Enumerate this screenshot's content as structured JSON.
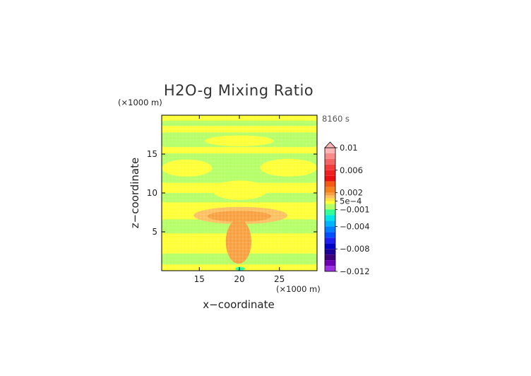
{
  "chart_data": {
    "type": "heatmap",
    "title": "H2O-g Mixing Ratio",
    "time_label": "8160 s",
    "xlabel": "x−coordinate",
    "ylabel": "z−coordinate",
    "x_unit": "(×1000 m)",
    "y_unit": "(×1000 m)",
    "xlim": [
      10.3,
      29.7
    ],
    "ylim": [
      0,
      20
    ],
    "x_ticks": [
      {
        "value": 15,
        "label": "15"
      },
      {
        "value": 20,
        "label": "20"
      },
      {
        "value": 25,
        "label": "25"
      }
    ],
    "y_ticks": [
      {
        "value": 5,
        "label": "5"
      },
      {
        "value": 10,
        "label": "10"
      },
      {
        "value": 15,
        "label": "15"
      }
    ],
    "colorbar": {
      "min": -0.012,
      "max": 0.01,
      "extend": "max",
      "ticks": [
        {
          "value": 0.01,
          "label": "0.01"
        },
        {
          "value": 0.006,
          "label": "0.006"
        },
        {
          "value": 0.002,
          "label": "0.002"
        },
        {
          "value": 0.0005,
          "label": "5e−4"
        },
        {
          "value": -0.001,
          "label": "−0.001"
        },
        {
          "value": -0.004,
          "label": "−0.004"
        },
        {
          "value": -0.008,
          "label": "−0.008"
        },
        {
          "value": -0.012,
          "label": "−0.012"
        }
      ],
      "levels": [
        {
          "from": 0.009,
          "to": 0.01,
          "color": "#fcb4b4"
        },
        {
          "from": 0.008,
          "to": 0.009,
          "color": "#f88a8a"
        },
        {
          "from": 0.007,
          "to": 0.008,
          "color": "#f46464"
        },
        {
          "from": 0.006,
          "to": 0.007,
          "color": "#f03c3c"
        },
        {
          "from": 0.005,
          "to": 0.006,
          "color": "#ee2020"
        },
        {
          "from": 0.004,
          "to": 0.005,
          "color": "#e81010"
        },
        {
          "from": 0.003,
          "to": 0.004,
          "color": "#f45a14"
        },
        {
          "from": 0.002,
          "to": 0.003,
          "color": "#f4801e"
        },
        {
          "from": 0.0015,
          "to": 0.002,
          "color": "#f8a040"
        },
        {
          "from": 0.001,
          "to": 0.0015,
          "color": "#fcc060"
        },
        {
          "from": 0.0005,
          "to": 0.001,
          "color": "#fce040"
        },
        {
          "from": 0.0,
          "to": 0.0005,
          "color": "#ffff33"
        },
        {
          "from": -0.001,
          "to": 0.0,
          "color": "#b4ff66"
        },
        {
          "from": -0.002,
          "to": -0.001,
          "color": "#33ff99"
        },
        {
          "from": -0.003,
          "to": -0.002,
          "color": "#00e6e6"
        },
        {
          "from": -0.004,
          "to": -0.003,
          "color": "#00b4ff"
        },
        {
          "from": -0.005,
          "to": -0.004,
          "color": "#0080ff"
        },
        {
          "from": -0.006,
          "to": -0.005,
          "color": "#0050ff"
        },
        {
          "from": -0.007,
          "to": -0.006,
          "color": "#1e1ef0"
        },
        {
          "from": -0.008,
          "to": -0.007,
          "color": "#0000c8"
        },
        {
          "from": -0.009,
          "to": -0.008,
          "color": "#1e0096"
        },
        {
          "from": -0.01,
          "to": -0.009,
          "color": "#3c0078"
        },
        {
          "from": -0.011,
          "to": -0.01,
          "color": "#6e00b4"
        },
        {
          "from": -0.012,
          "to": -0.011,
          "color": "#9b30e0"
        }
      ]
    },
    "field": {
      "background_value": 0.00025,
      "regions": [
        {
          "name": "green-band-top",
          "x": [
            10.3,
            29.7
          ],
          "z": [
            18.6,
            19.3
          ],
          "value": -0.0005
        },
        {
          "name": "green-band-upper",
          "x": [
            10.3,
            29.7
          ],
          "z": [
            15.9,
            17.8
          ],
          "value": -0.0005
        },
        {
          "name": "green-band-middle",
          "x": [
            10.3,
            29.7
          ],
          "z": [
            11.3,
            15.1
          ],
          "value": -0.0005
        },
        {
          "name": "green-band-lower",
          "x": [
            10.3,
            29.7
          ],
          "z": [
            8.8,
            10.0
          ],
          "value": -0.0005
        },
        {
          "name": "green-band-low",
          "x": [
            10.3,
            29.7
          ],
          "z": [
            4.8,
            6.6
          ],
          "value": -0.0005
        },
        {
          "name": "green-band-surface",
          "x": [
            10.3,
            29.7
          ],
          "z": [
            0.8,
            2.2
          ],
          "value": -0.0005
        },
        {
          "name": "yellow-lens-upper",
          "x": [
            15.7,
            24.3
          ],
          "z": [
            16.0,
            17.4
          ],
          "value": 0.00025
        },
        {
          "name": "yellow-lens-middle-left",
          "x": [
            10.3,
            16.6
          ],
          "z": [
            12.1,
            14.3
          ],
          "value": 0.00025
        },
        {
          "name": "yellow-lens-middle-right",
          "x": [
            22.6,
            29.7
          ],
          "z": [
            12.1,
            14.4
          ],
          "value": 0.00025
        },
        {
          "name": "yellow-lens-lower",
          "x": [
            16.6,
            23.5
          ],
          "z": [
            9.1,
            11.6
          ],
          "value": 0.00025
        },
        {
          "name": "orange-anvil-outer",
          "x": [
            14.3,
            26.0
          ],
          "z": [
            6.0,
            8.2
          ],
          "value": 0.0012
        },
        {
          "name": "orange-anvil-core",
          "x": [
            16.0,
            24.0
          ],
          "z": [
            6.3,
            7.7
          ],
          "value": 0.0018
        },
        {
          "name": "orange-column",
          "x": [
            18.3,
            21.5
          ],
          "z": [
            0.9,
            6.6
          ],
          "value": 0.0016
        },
        {
          "name": "cyan-surface-spot",
          "x": [
            19.5,
            20.7
          ],
          "z": [
            0.0,
            0.5
          ],
          "value": -0.0018
        }
      ]
    }
  }
}
